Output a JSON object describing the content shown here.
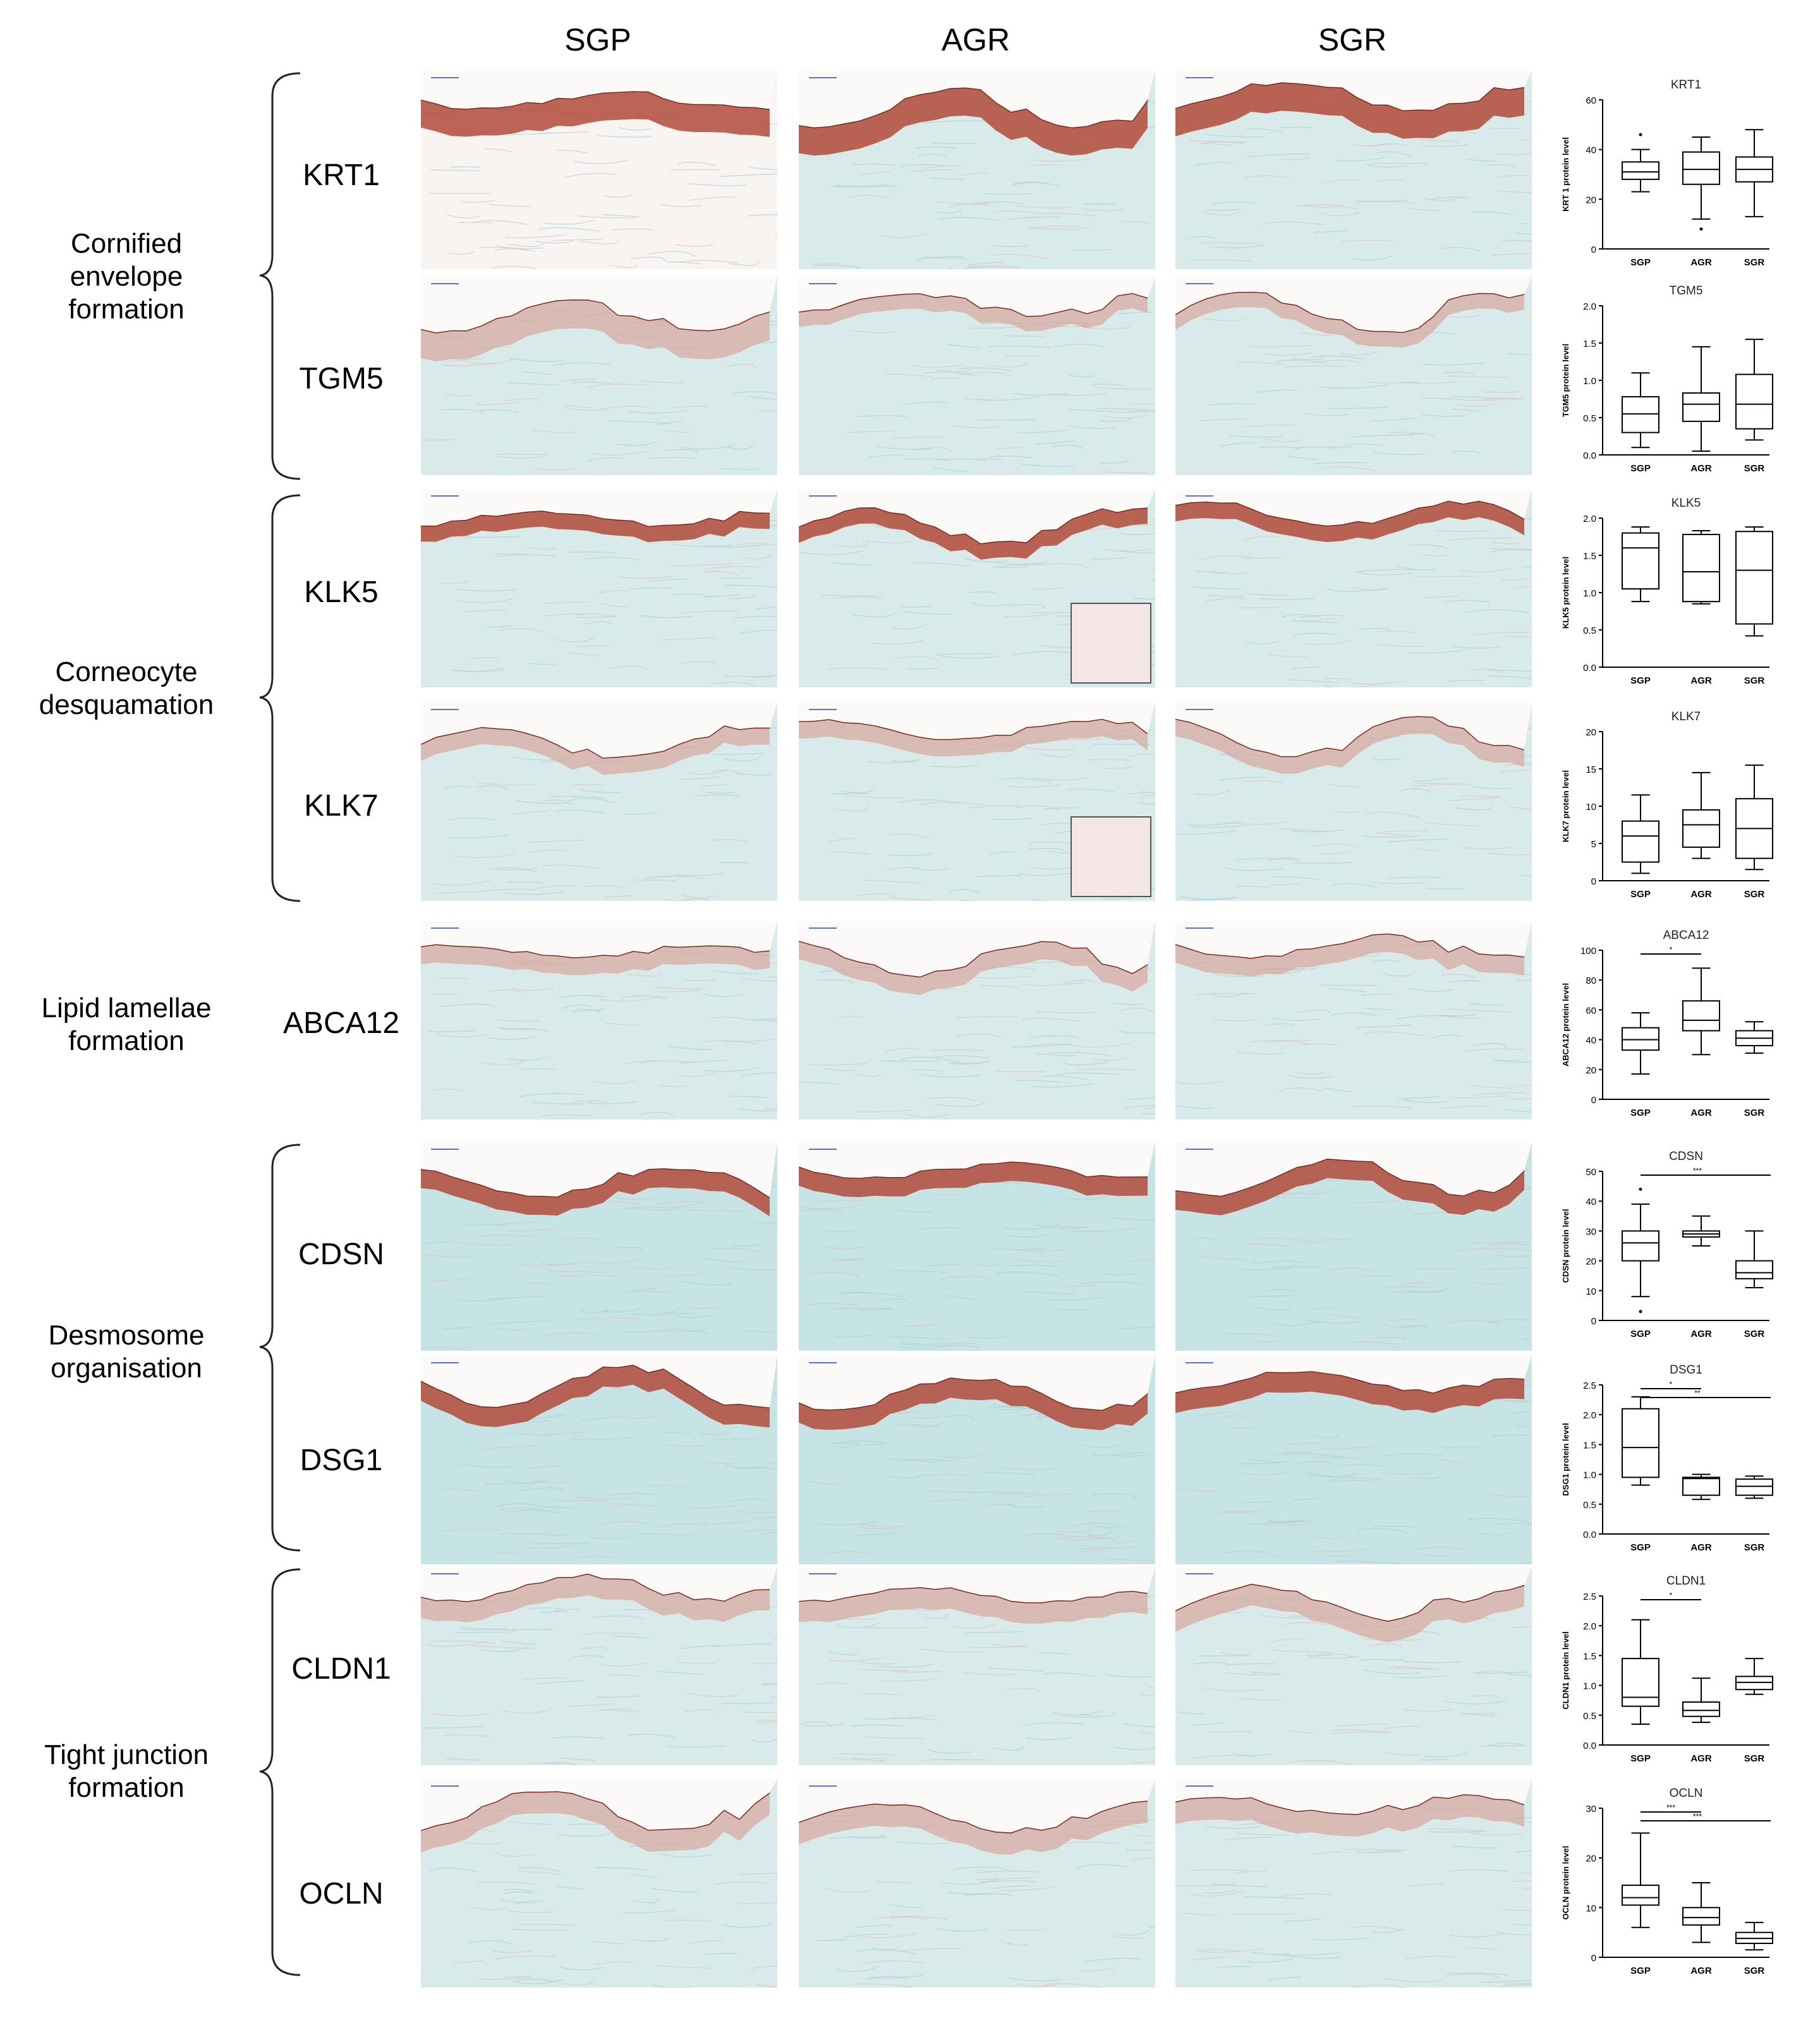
{
  "columns": [
    "SGP",
    "AGR",
    "SGR"
  ],
  "groups": [
    {
      "label": "Cornified\nenvelope\nformation"
    },
    {
      "label": "Corneocyte\ndesquamation"
    },
    {
      "label": "Lipid lamellae\nformation"
    },
    {
      "label": "Desmosome\norganisation"
    },
    {
      "label": "Tight junction\nformation"
    }
  ],
  "markers": [
    "KRT1",
    "TGM5",
    "KLK5",
    "KLK7",
    "ABCA12",
    "CDSN",
    "DSG1",
    "CLDN1",
    "OCLN"
  ],
  "colors": {
    "stain_brown": "#b24a3a",
    "counterstain_blue": "#bfdfe2",
    "tissue_light": "#f4ebe6",
    "box_stroke": "#000000"
  },
  "chart_data": [
    {
      "type": "box",
      "title": "KRT1",
      "ylabel": "KRT 1 protein level",
      "categories": [
        "SGP",
        "AGR",
        "SGR"
      ],
      "ylim": [
        0,
        60
      ],
      "yticks": [
        "0",
        "20",
        "40",
        "60"
      ],
      "boxes": [
        {
          "min": 23,
          "q1": 28,
          "median": 31,
          "q3": 35,
          "max": 40,
          "outliers": [
            46
          ]
        },
        {
          "min": 12,
          "q1": 26,
          "median": 32,
          "q3": 39,
          "max": 45,
          "outliers": [
            8
          ]
        },
        {
          "min": 13,
          "q1": 27,
          "median": 32,
          "q3": 37,
          "max": 48,
          "outliers": []
        }
      ],
      "significance": []
    },
    {
      "type": "box",
      "title": "TGM5",
      "ylabel": "TGM5 protein level",
      "categories": [
        "SGP",
        "AGR",
        "SGR"
      ],
      "ylim": [
        0,
        2.0
      ],
      "yticks": [
        "0.0",
        "0.5",
        "1.0",
        "1.5",
        "2.0"
      ],
      "boxes": [
        {
          "min": 0.1,
          "q1": 0.3,
          "median": 0.55,
          "q3": 0.78,
          "max": 1.1,
          "outliers": []
        },
        {
          "min": 0.05,
          "q1": 0.45,
          "median": 0.68,
          "q3": 0.83,
          "max": 1.45,
          "outliers": []
        },
        {
          "min": 0.2,
          "q1": 0.35,
          "median": 0.68,
          "q3": 1.08,
          "max": 1.55,
          "outliers": []
        }
      ],
      "significance": []
    },
    {
      "type": "box",
      "title": "KLK5",
      "ylabel": "KLK5 protein level",
      "categories": [
        "SGP",
        "AGR",
        "SGR"
      ],
      "ylim": [
        0,
        2.0
      ],
      "yticks": [
        "0.0",
        "0.5",
        "1.0",
        "1.5",
        "2.0"
      ],
      "boxes": [
        {
          "min": 0.88,
          "q1": 1.05,
          "median": 1.6,
          "q3": 1.8,
          "max": 1.88,
          "outliers": []
        },
        {
          "min": 0.85,
          "q1": 0.88,
          "median": 1.28,
          "q3": 1.78,
          "max": 1.83,
          "outliers": []
        },
        {
          "min": 0.42,
          "q1": 0.58,
          "median": 1.3,
          "q3": 1.82,
          "max": 1.88,
          "outliers": []
        }
      ],
      "significance": []
    },
    {
      "type": "box",
      "title": "KLK7",
      "ylabel": "KLK7 protein level",
      "categories": [
        "SGP",
        "AGR",
        "SGR"
      ],
      "ylim": [
        0,
        20
      ],
      "yticks": [
        "0",
        "5",
        "10",
        "15",
        "20"
      ],
      "boxes": [
        {
          "min": 1,
          "q1": 2.5,
          "median": 6,
          "q3": 8,
          "max": 11.5,
          "outliers": []
        },
        {
          "min": 3,
          "q1": 4.5,
          "median": 7.5,
          "q3": 9.5,
          "max": 14.5,
          "outliers": []
        },
        {
          "min": 1.5,
          "q1": 3,
          "median": 7,
          "q3": 11,
          "max": 15.5,
          "outliers": []
        }
      ],
      "significance": []
    },
    {
      "type": "box",
      "title": "ABCA12",
      "ylabel": "ABCA12 protein level",
      "categories": [
        "SGP",
        "AGR",
        "SGR"
      ],
      "ylim": [
        0,
        100
      ],
      "yticks": [
        "0",
        "20",
        "40",
        "60",
        "80",
        "100"
      ],
      "boxes": [
        {
          "min": 17,
          "q1": 33,
          "median": 40,
          "q3": 48,
          "max": 58,
          "outliers": []
        },
        {
          "min": 30,
          "q1": 46,
          "median": 53,
          "q3": 66,
          "max": 88,
          "outliers": []
        },
        {
          "min": 31,
          "q1": 36,
          "median": 41,
          "q3": 46,
          "max": 52,
          "outliers": []
        }
      ],
      "significance": [
        {
          "from": 0,
          "to": 1,
          "label": "*"
        }
      ]
    },
    {
      "type": "box",
      "title": "CDSN",
      "ylabel": "CDSN protein level",
      "categories": [
        "SGP",
        "AGR",
        "SGR"
      ],
      "ylim": [
        0,
        50
      ],
      "yticks": [
        "0",
        "10",
        "20",
        "30",
        "40",
        "50"
      ],
      "boxes": [
        {
          "min": 8,
          "q1": 20,
          "median": 26,
          "q3": 30,
          "max": 39,
          "outliers": [
            44,
            3
          ]
        },
        {
          "min": 25,
          "q1": 28,
          "median": 29,
          "q3": 30,
          "max": 35,
          "outliers": []
        },
        {
          "min": 11,
          "q1": 14,
          "median": 16,
          "q3": 20,
          "max": 30,
          "outliers": []
        }
      ],
      "significance": [
        {
          "from": 0,
          "to": 2,
          "label": "***"
        }
      ]
    },
    {
      "type": "box",
      "title": "DSG1",
      "ylabel": "DSG1 protein level",
      "categories": [
        "SGP",
        "AGR",
        "SGR"
      ],
      "ylim": [
        0,
        2.5
      ],
      "yticks": [
        "0.0",
        "0.5",
        "1.0",
        "1.5",
        "2.0",
        "2.5"
      ],
      "boxes": [
        {
          "min": 0.82,
          "q1": 0.95,
          "median": 1.45,
          "q3": 2.1,
          "max": 2.3,
          "outliers": []
        },
        {
          "min": 0.58,
          "q1": 0.65,
          "median": 0.93,
          "q3": 0.95,
          "max": 1.0,
          "outliers": []
        },
        {
          "min": 0.6,
          "q1": 0.65,
          "median": 0.8,
          "q3": 0.92,
          "max": 0.97,
          "outliers": []
        }
      ],
      "significance": [
        {
          "from": 0,
          "to": 1,
          "label": "*"
        },
        {
          "from": 0,
          "to": 2,
          "label": "**"
        }
      ]
    },
    {
      "type": "box",
      "title": "CLDN1",
      "ylabel": "CLDN1 protein level",
      "categories": [
        "SGP",
        "AGR",
        "SGR"
      ],
      "ylim": [
        0,
        2.5
      ],
      "yticks": [
        "0.0",
        "0.5",
        "1.0",
        "1.5",
        "2.0",
        "2.5"
      ],
      "boxes": [
        {
          "min": 0.35,
          "q1": 0.65,
          "median": 0.8,
          "q3": 1.45,
          "max": 2.1,
          "outliers": []
        },
        {
          "min": 0.38,
          "q1": 0.48,
          "median": 0.58,
          "q3": 0.72,
          "max": 1.12,
          "outliers": []
        },
        {
          "min": 0.85,
          "q1": 0.93,
          "median": 1.05,
          "q3": 1.15,
          "max": 1.45,
          "outliers": []
        }
      ],
      "significance": [
        {
          "from": 0,
          "to": 1,
          "label": "*"
        }
      ]
    },
    {
      "type": "box",
      "title": "OCLN",
      "ylabel": "OCLN protein level",
      "categories": [
        "SGP",
        "AGR",
        "SGR"
      ],
      "ylim": [
        0,
        30
      ],
      "yticks": [
        "0",
        "10",
        "20",
        "30"
      ],
      "boxes": [
        {
          "min": 6,
          "q1": 10.5,
          "median": 12,
          "q3": 14.5,
          "max": 25,
          "outliers": []
        },
        {
          "min": 3,
          "q1": 6.5,
          "median": 8,
          "q3": 10,
          "max": 15,
          "outliers": []
        },
        {
          "min": 1.5,
          "q1": 2.8,
          "median": 3.8,
          "q3": 5,
          "max": 7,
          "outliers": []
        }
      ],
      "significance": [
        {
          "from": 0,
          "to": 1,
          "label": "***"
        },
        {
          "from": 0,
          "to": 2,
          "label": "***"
        }
      ]
    }
  ]
}
